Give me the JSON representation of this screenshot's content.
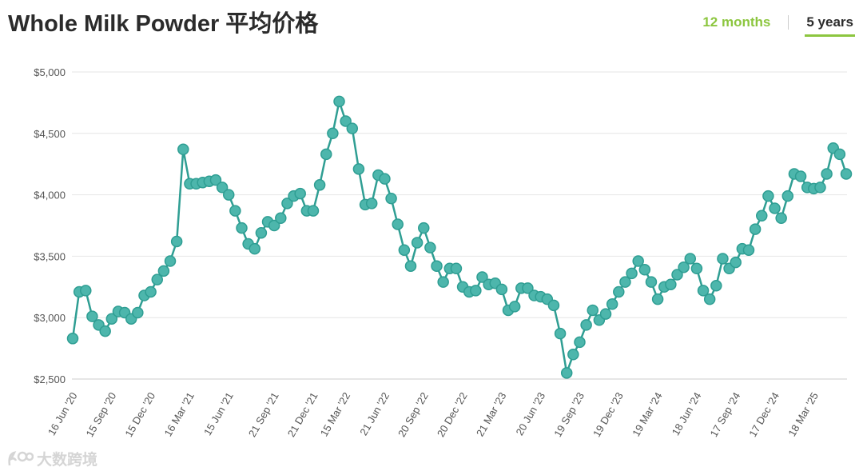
{
  "header": {
    "title": "Whole Milk Powder 平均价格",
    "tabs": [
      {
        "label": "12 months",
        "active": false
      },
      {
        "label": "5 years",
        "active": true
      }
    ]
  },
  "watermark": {
    "text": "大数跨境"
  },
  "colors": {
    "line": "#2f9e93",
    "marker_fill": "#4db6ac",
    "grid": "#e6e6e6",
    "accent": "#8cc63f"
  },
  "chart_data": {
    "type": "line",
    "title": "Whole Milk Powder 平均价格",
    "xlabel": "",
    "ylabel": "",
    "ylim": [
      2500,
      5000
    ],
    "y_ticks": [
      2500,
      3000,
      3500,
      4000,
      4500,
      5000
    ],
    "y_tick_labels": [
      "$2,500",
      "$3,000",
      "$3,500",
      "$4,000",
      "$4,500",
      "$5,000"
    ],
    "x_tick_labels": [
      {
        "index": 0,
        "label": "16 Jun '20"
      },
      {
        "index": 6,
        "label": "15 Sep '20"
      },
      {
        "index": 12,
        "label": "15 Dec '20"
      },
      {
        "index": 18,
        "label": "16 Mar '21"
      },
      {
        "index": 24,
        "label": "15 Jun '21"
      },
      {
        "index": 31,
        "label": "21 Sep '21"
      },
      {
        "index": 37,
        "label": "21 Dec '21"
      },
      {
        "index": 42,
        "label": "15 Mar '22"
      },
      {
        "index": 48,
        "label": "21 Jun '22"
      },
      {
        "index": 54,
        "label": "20 Sep '22"
      },
      {
        "index": 60,
        "label": "20 Dec '22"
      },
      {
        "index": 66,
        "label": "21 Mar '23"
      },
      {
        "index": 72,
        "label": "20 Jun '23"
      },
      {
        "index": 78,
        "label": "19 Sep '23"
      },
      {
        "index": 84,
        "label": "19 Dec '23"
      },
      {
        "index": 90,
        "label": "19 Mar '24"
      },
      {
        "index": 96,
        "label": "18 Jun '24"
      },
      {
        "index": 102,
        "label": "17 Sep '24"
      },
      {
        "index": 108,
        "label": "17 Dec '24"
      },
      {
        "index": 114,
        "label": "18 Mar '25"
      }
    ],
    "grid": true,
    "legend": "none",
    "series": [
      {
        "values": [
          2830,
          3210,
          3220,
          3010,
          2940,
          2890,
          2990,
          3050,
          3040,
          2990,
          3040,
          3180,
          3210,
          3310,
          3380,
          3460,
          3620,
          4370,
          4090,
          4090,
          4100,
          4110,
          4120,
          4060,
          4000,
          3870,
          3730,
          3600,
          3560,
          3690,
          3780,
          3750,
          3810,
          3930,
          3990,
          4010,
          3870,
          3870,
          4080,
          4330,
          4500,
          4760,
          4600,
          4540,
          4210,
          3920,
          3930,
          4160,
          4130,
          3970,
          3760,
          3550,
          3420,
          3610,
          3730,
          3570,
          3420,
          3290,
          3400,
          3400,
          3250,
          3210,
          3220,
          3330,
          3270,
          3280,
          3230,
          3060,
          3090,
          3240,
          3240,
          3180,
          3170,
          3150,
          3100,
          2870,
          2550,
          2700,
          2800,
          2940,
          3060,
          2980,
          3030,
          3110,
          3210,
          3290,
          3360,
          3460,
          3390,
          3290,
          3150,
          3250,
          3270,
          3350,
          3410,
          3480,
          3400,
          3220,
          3150,
          3260,
          3480,
          3400,
          3450,
          3560,
          3550,
          3720,
          3830,
          3990,
          3890,
          3810,
          3990,
          4170,
          4150,
          4060,
          4050,
          4060,
          4170,
          4380,
          4330,
          4170
        ]
      }
    ]
  }
}
